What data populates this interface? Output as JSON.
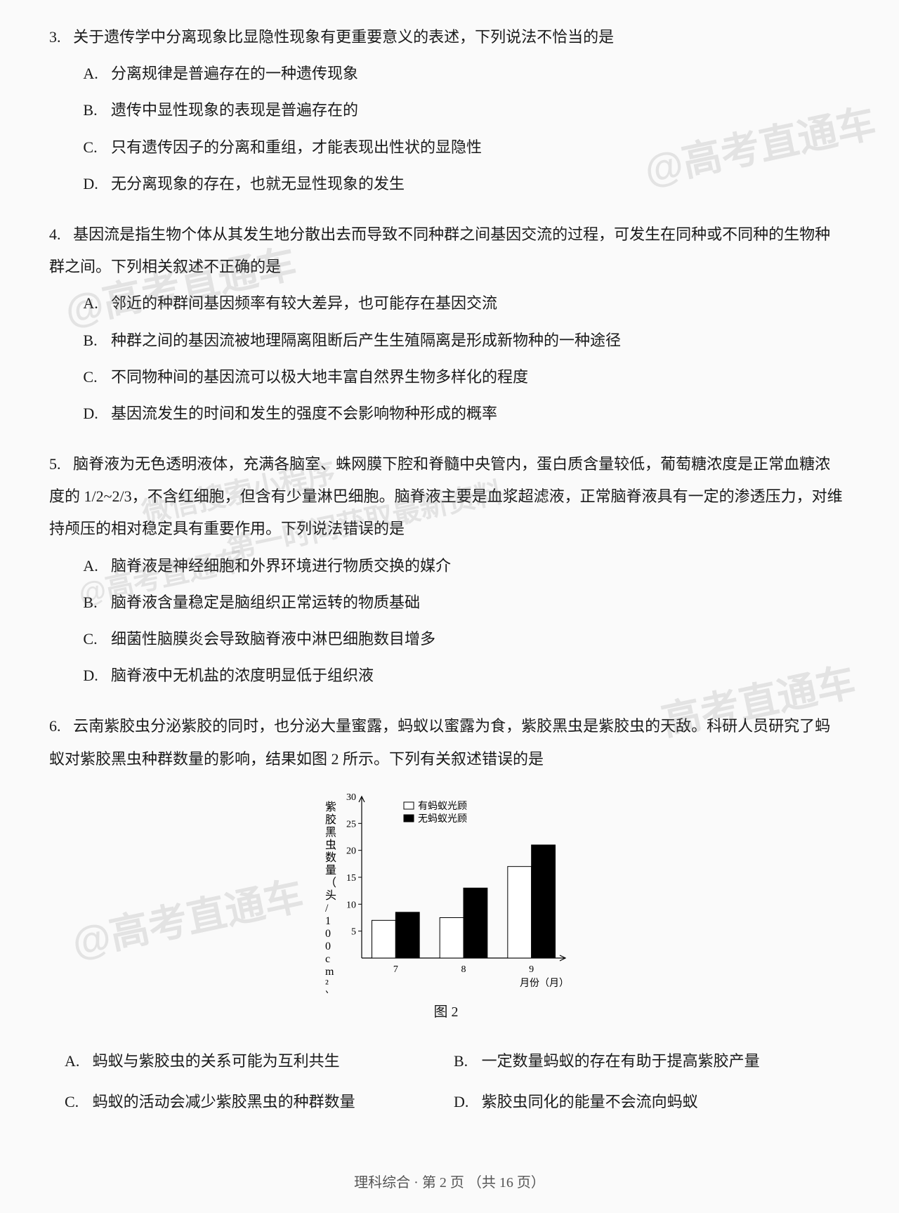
{
  "watermarks": {
    "w1": "@高考直通车",
    "w2": "@高考直通车",
    "w3": "微信搜索小程序",
    "w4": "第一时间获取最新资料",
    "w5": "@高考直通车",
    "w6": "高考直通车",
    "w7": "@高考直通车"
  },
  "q3": {
    "num": "3.",
    "stem": "关于遗传学中分离现象比显隐性现象有更重要意义的表述，下列说法不恰当的是",
    "opts": {
      "A": "分离规律是普遍存在的一种遗传现象",
      "B": "遗传中显性现象的表现是普遍存在的",
      "C": "只有遗传因子的分离和重组，才能表现出性状的显隐性",
      "D": "无分离现象的存在，也就无显性现象的发生"
    }
  },
  "q4": {
    "num": "4.",
    "stem": "基因流是指生物个体从其发生地分散出去而导致不同种群之间基因交流的过程，可发生在同种或不同种的生物种群之间。下列相关叙述不正确的是",
    "opts": {
      "A": "邻近的种群间基因频率有较大差异，也可能存在基因交流",
      "B": "种群之间的基因流被地理隔离阻断后产生生殖隔离是形成新物种的一种途径",
      "C": "不同物种间的基因流可以极大地丰富自然界生物多样化的程度",
      "D": "基因流发生的时间和发生的强度不会影响物种形成的概率"
    }
  },
  "q5": {
    "num": "5.",
    "stem": "脑脊液为无色透明液体，充满各脑室、蛛网膜下腔和脊髓中央管内，蛋白质含量较低，葡萄糖浓度是正常血糖浓度的 1/2~2/3，不含红细胞，但含有少量淋巴细胞。脑脊液主要是血浆超滤液，正常脑脊液具有一定的渗透压力，对维持颅压的相对稳定具有重要作用。下列说法错误的是",
    "opts": {
      "A": "脑脊液是神经细胞和外界环境进行物质交换的媒介",
      "B": "脑脊液含量稳定是脑组织正常运转的物质基础",
      "C": "细菌性脑膜炎会导致脑脊液中淋巴细胞数目增多",
      "D": "脑脊液中无机盐的浓度明显低于组织液"
    }
  },
  "q6": {
    "num": "6.",
    "stem": "云南紫胶虫分泌紫胶的同时，也分泌大量蜜露，蚂蚁以蜜露为食，紫胶黑虫是紫胶虫的天敌。科研人员研究了蚂蚁对紫胶黑虫种群数量的影响，结果如图 2 所示。下列有关叙述错误的是",
    "opts": {
      "A": "蚂蚁与紫胶虫的关系可能为互利共生",
      "B": "一定数量蚂蚁的存在有助于提高紫胶产量",
      "C": "蚂蚁的活动会减少紫胶黑虫的种群数量",
      "D": "紫胶虫同化的能量不会流向蚂蚁"
    }
  },
  "chart": {
    "type": "bar",
    "caption": "图 2",
    "ylabel": "紫胶黑虫数量（头/100cm²）",
    "xlabel": "月份（月）",
    "categories": [
      "7",
      "8",
      "9"
    ],
    "series": [
      {
        "name": "有蚂蚁光顾",
        "color": "#ffffff",
        "values": [
          7,
          7.5,
          17
        ]
      },
      {
        "name": "无蚂蚁光顾",
        "color": "#000000",
        "values": [
          8.5,
          13,
          21
        ]
      }
    ],
    "ylim": [
      0,
      30
    ],
    "ytick_step": 5,
    "bar_group_width": 0.7,
    "title_fontsize": 14,
    "label_fontsize": 14,
    "background_color": "#fafafa",
    "axis_color": "#000000"
  },
  "footer": "理科综合 · 第 2 页 （共 16 页）"
}
